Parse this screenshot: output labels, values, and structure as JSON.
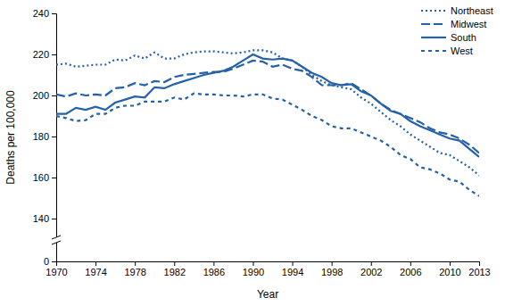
{
  "chart_data": {
    "type": "line",
    "x_label": "Year",
    "y_label": "Deaths per 100,000",
    "x": [
      1970,
      1971,
      1972,
      1973,
      1974,
      1975,
      1976,
      1977,
      1978,
      1979,
      1980,
      1981,
      1982,
      1983,
      1984,
      1985,
      1986,
      1987,
      1988,
      1989,
      1990,
      1991,
      1992,
      1993,
      1994,
      1995,
      1996,
      1997,
      1998,
      1999,
      2000,
      2001,
      2002,
      2003,
      2004,
      2005,
      2006,
      2007,
      2008,
      2009,
      2010,
      2011,
      2012,
      2013
    ],
    "series": [
      {
        "name": "Northeast",
        "color": "#2461a8",
        "line_style": "dotted",
        "values": [
          215,
          215.5,
          214,
          214.5,
          215,
          215,
          217.5,
          217,
          219.5,
          218,
          221,
          218,
          218,
          220,
          221,
          221.5,
          221.5,
          221,
          220.5,
          221,
          222,
          222,
          221,
          218,
          217,
          214,
          210,
          207,
          205,
          204,
          203,
          199,
          196,
          192,
          188,
          185,
          181,
          178,
          175,
          172,
          171,
          168,
          165,
          161
        ]
      },
      {
        "name": "Midwest",
        "color": "#2461a8",
        "line_style": "longdash",
        "values": [
          200.5,
          199.5,
          201,
          200,
          200.5,
          200,
          203.5,
          204,
          206,
          205,
          207,
          206.5,
          209,
          210,
          210.5,
          211,
          211.5,
          211.5,
          213,
          215,
          217,
          216.5,
          214,
          215,
          213,
          212,
          209,
          205,
          205,
          205,
          206,
          203,
          200,
          196,
          193,
          191,
          189,
          187,
          184,
          182,
          181,
          179,
          176,
          172
        ]
      },
      {
        "name": "South",
        "color": "#2461a8",
        "line_style": "solid",
        "values": [
          191,
          191,
          194,
          193,
          194.5,
          193,
          196.5,
          198,
          199.5,
          199,
          204,
          203.5,
          205.5,
          207,
          208.5,
          210,
          211,
          212,
          214,
          217,
          220,
          218,
          217.5,
          218,
          217,
          214,
          211,
          209,
          206,
          205,
          205.5,
          202,
          200,
          196,
          192.5,
          191,
          187.5,
          185,
          183,
          181,
          179,
          178,
          174,
          170
        ]
      },
      {
        "name": "West",
        "color": "#2461a8",
        "line_style": "dashed",
        "values": [
          190,
          189,
          187.5,
          188,
          191,
          191,
          194,
          195,
          195,
          197,
          197,
          197,
          199,
          198,
          201,
          200.5,
          200.5,
          200,
          200,
          199.5,
          200.5,
          200.5,
          198.5,
          198,
          195.5,
          193,
          190,
          188,
          185,
          184,
          184,
          182,
          180,
          178,
          175,
          171,
          169,
          165,
          164,
          162,
          159,
          158,
          154,
          151
        ]
      }
    ],
    "xlim": [
      1970,
      2013
    ],
    "xticks": [
      1970,
      1974,
      1978,
      1982,
      1986,
      1990,
      1994,
      1998,
      2002,
      2006,
      2010,
      2013
    ],
    "ylim": [
      0,
      240
    ],
    "yticks": [
      0,
      140,
      160,
      180,
      200,
      220,
      240
    ],
    "legend": "upper right",
    "grid": false
  }
}
